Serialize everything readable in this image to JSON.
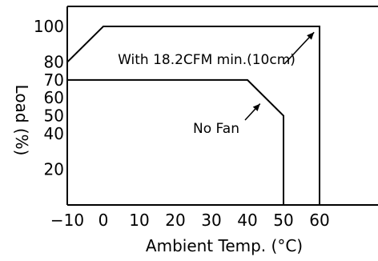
{
  "chart_data": {
    "type": "line",
    "title": "",
    "xlabel": "Ambient Temp. (°C)",
    "ylabel": "Load (%)",
    "xlim": [
      -10,
      70
    ],
    "ylim": [
      0,
      110
    ],
    "x_ticks": [
      -10,
      0,
      10,
      20,
      30,
      40,
      50,
      60
    ],
    "y_ticks": [
      20,
      40,
      50,
      60,
      70,
      80,
      100
    ],
    "grid": false,
    "series": [
      {
        "name": "With 18.2CFM min.(10cm)",
        "points": [
          [
            -10,
            80
          ],
          [
            0,
            100
          ],
          [
            60,
            100
          ],
          [
            60,
            0
          ]
        ]
      },
      {
        "name": "No Fan",
        "points": [
          [
            -10,
            70
          ],
          [
            40,
            70
          ],
          [
            50,
            50
          ],
          [
            50,
            0
          ]
        ]
      }
    ],
    "annotations": [
      {
        "text": "With 18.2CFM min.(10cm)",
        "target": [
          60,
          100
        ]
      },
      {
        "text": "No Fan",
        "target": [
          45,
          60
        ]
      }
    ]
  }
}
